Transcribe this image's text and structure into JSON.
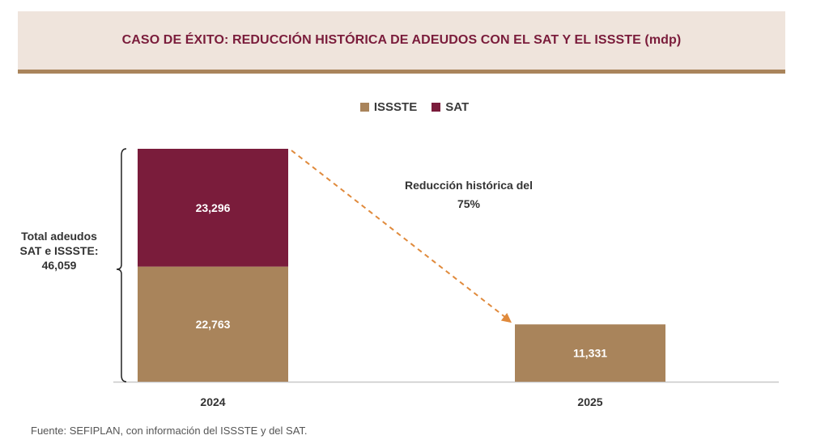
{
  "title": "CASO DE ÉXITO: REDUCCIÓN HISTÓRICA DE ADEUDOS CON EL SAT Y EL ISSSTE (mdp)",
  "legend": [
    {
      "name": "ISSSTE",
      "color": "#a9845b"
    },
    {
      "name": "SAT",
      "color": "#7a1c3b"
    }
  ],
  "annotations": {
    "total_lines": [
      "Total adeudos",
      "SAT e ISSSTE:",
      "46,059"
    ],
    "reduction_lines": [
      "Reducción histórica del",
      "75%"
    ]
  },
  "source": "Fuente: SEFIPLAN, con información del ISSSTE y del SAT.",
  "colors": {
    "issste": "#a9845b",
    "sat": "#7a1c3b",
    "arrow": "#e08a3c",
    "axis": "#c8c8c8"
  },
  "chart_data": {
    "type": "bar",
    "stacked": true,
    "categories": [
      "2024",
      "2025"
    ],
    "series": [
      {
        "name": "ISSSTE",
        "values": [
          22763,
          11331
        ],
        "labels": [
          "22,763",
          "11,331"
        ]
      },
      {
        "name": "SAT",
        "values": [
          23296,
          0
        ],
        "labels": [
          "23,296",
          ""
        ]
      }
    ],
    "ylim": [
      0,
      46059
    ],
    "grid": false,
    "legend_position": "top-center"
  }
}
